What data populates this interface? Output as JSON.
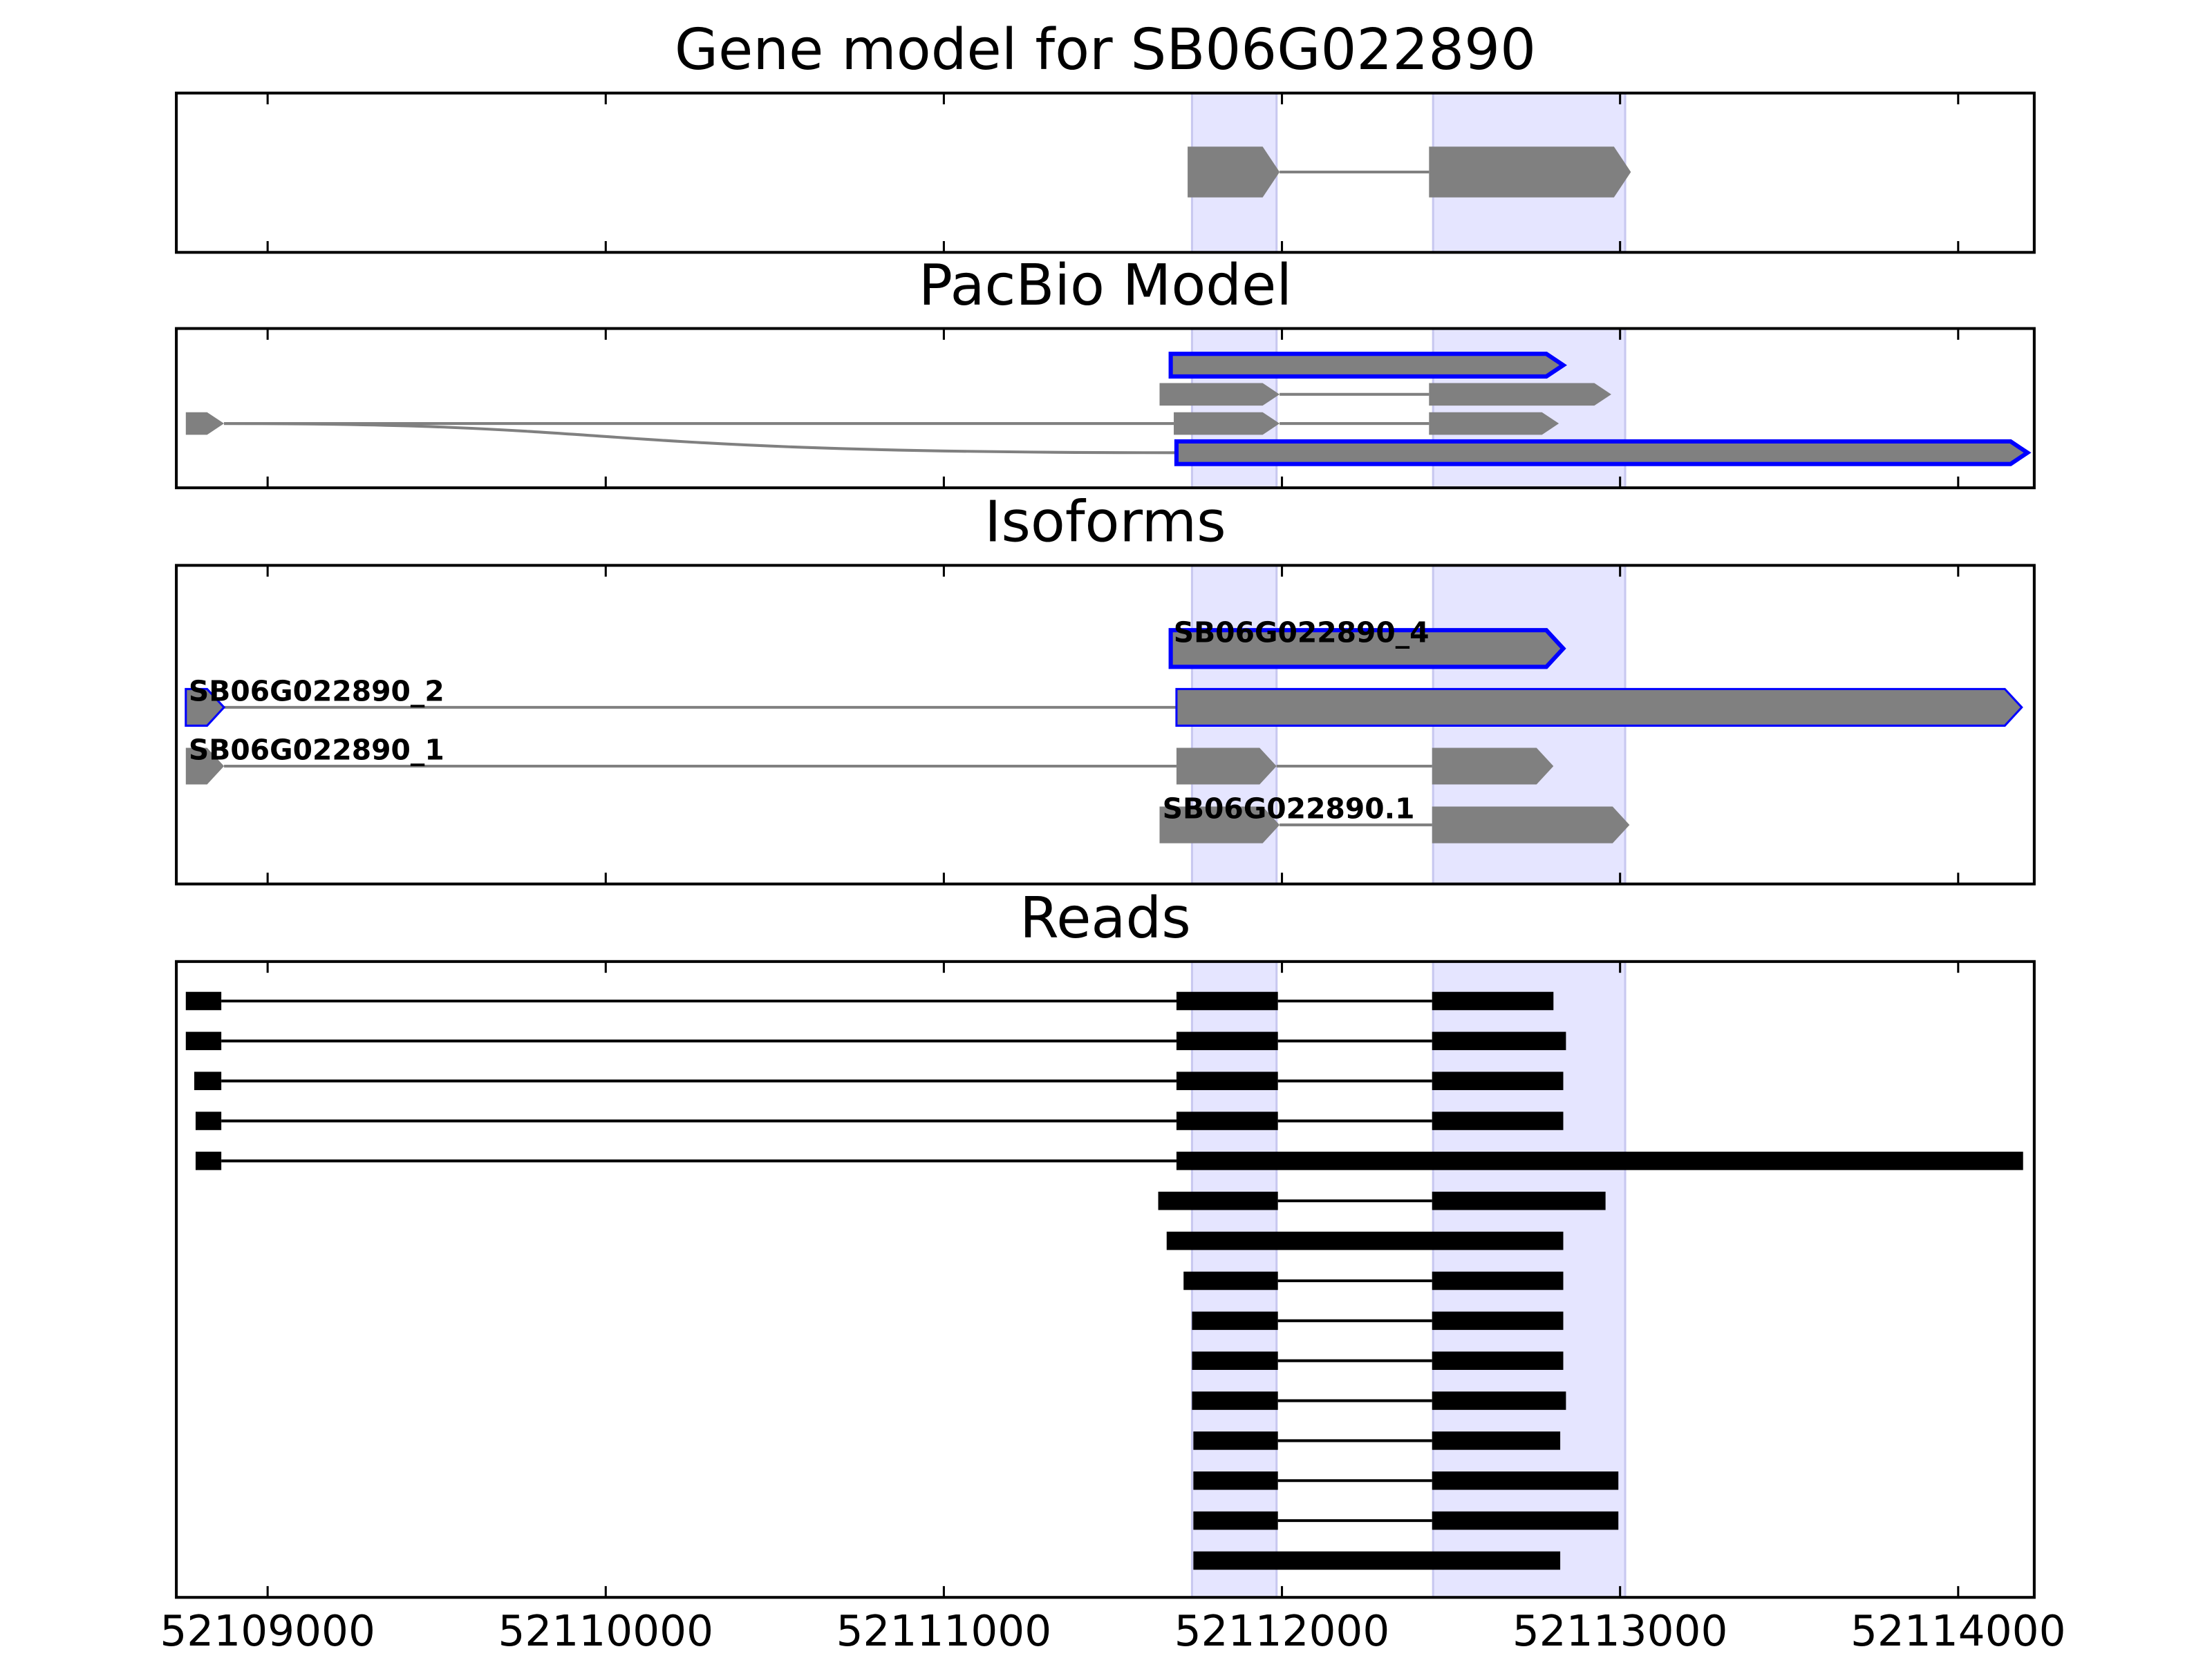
{
  "chart_data": [
    {
      "type": "track",
      "title": "Gene model for SB06G022890",
      "color": "#808080",
      "tracks": [
        {
          "exons": [
            [
              52111721,
              52111993
            ],
            [
              52112435,
              52113032
            ]
          ]
        }
      ]
    },
    {
      "type": "track",
      "title": "PacBio Model",
      "color": "#808080",
      "tracks": [
        {
          "exons": [
            [
              52111671,
              52112832
            ]
          ],
          "edgecolor": "#0000ff",
          "edgewidth": 3
        },
        {
          "exons": [
            [
              52111638,
              52111993
            ],
            [
              52112435,
              52112974
            ]
          ]
        },
        {
          "exons": [
            [
              52108758,
              52108871
            ],
            [
              52111680,
              52111993
            ],
            [
              52112435,
              52112819
            ]
          ]
        },
        {
          "exons": [
            [
              52111688,
              52114205
            ]
          ],
          "edgecolor": "#0000ff",
          "edgewidth": 3
        }
      ]
    },
    {
      "type": "track",
      "title": "Isoforms",
      "color": "#808080",
      "tracks": [
        {
          "name": "SB06G022890_4",
          "exons": [
            [
              52111671,
              52112832
            ]
          ],
          "edgecolor": "#0000ff",
          "edgewidth": 3
        },
        {
          "name": "SB06G022890_2",
          "exons": [
            [
              52108758,
              52108871
            ],
            [
              52111688,
              52114188
            ]
          ],
          "edgecolor": "#0000ff",
          "edgewidth": 1.5
        },
        {
          "name": "SB06G022890_1",
          "exons": [
            [
              52108758,
              52108871
            ],
            [
              52111688,
              52111984
            ],
            [
              52112444,
              52112803
            ]
          ]
        },
        {
          "name": "SB06G022890.1",
          "exons": [
            [
              52111638,
              52111993
            ],
            [
              52112444,
              52113028
            ]
          ]
        }
      ]
    },
    {
      "type": "reads",
      "title": "Reads",
      "color": "#000000",
      "xlim": [
        52108730,
        52114225
      ],
      "xticks": [
        52109000,
        52110000,
        52111000,
        52112000,
        52113000,
        52114000
      ],
      "regions": [
        [
          52111734,
          52111984
        ],
        [
          52112447,
          52113015
        ]
      ],
      "tracks": [
        {
          "exons": [
            [
              52108758,
              52108863
            ],
            [
              52111688,
              52111988
            ],
            [
              52112444,
              52112803
            ]
          ]
        },
        {
          "exons": [
            [
              52108758,
              52108863
            ],
            [
              52111688,
              52111988
            ],
            [
              52112444,
              52112840
            ]
          ]
        },
        {
          "exons": [
            [
              52108783,
              52108863
            ],
            [
              52111688,
              52111988
            ],
            [
              52112444,
              52112832
            ]
          ]
        },
        {
          "exons": [
            [
              52108787,
              52108863
            ],
            [
              52111688,
              52111988
            ],
            [
              52112444,
              52112832
            ]
          ]
        },
        {
          "exons": [
            [
              52108787,
              52108863
            ],
            [
              52111688,
              52114192
            ]
          ]
        },
        {
          "exons": [
            [
              52111634,
              52111988
            ],
            [
              52112444,
              52112957
            ]
          ]
        },
        {
          "exons": [
            [
              52111659,
              52112832
            ]
          ]
        },
        {
          "exons": [
            [
              52111709,
              52111988
            ],
            [
              52112444,
              52112832
            ]
          ]
        },
        {
          "exons": [
            [
              52111734,
              52111988
            ],
            [
              52112444,
              52112832
            ]
          ]
        },
        {
          "exons": [
            [
              52111734,
              52111988
            ],
            [
              52112444,
              52112832
            ]
          ]
        },
        {
          "exons": [
            [
              52111734,
              52111988
            ],
            [
              52112444,
              52112840
            ]
          ]
        },
        {
          "exons": [
            [
              52111738,
              52111988
            ],
            [
              52112444,
              52112823
            ]
          ]
        },
        {
          "exons": [
            [
              52111738,
              52111988
            ],
            [
              52112444,
              52112995
            ]
          ]
        },
        {
          "exons": [
            [
              52111738,
              52111988
            ],
            [
              52112444,
              52112995
            ]
          ]
        },
        {
          "exons": [
            [
              52111738,
              52112823
            ]
          ]
        }
      ]
    }
  ]
}
